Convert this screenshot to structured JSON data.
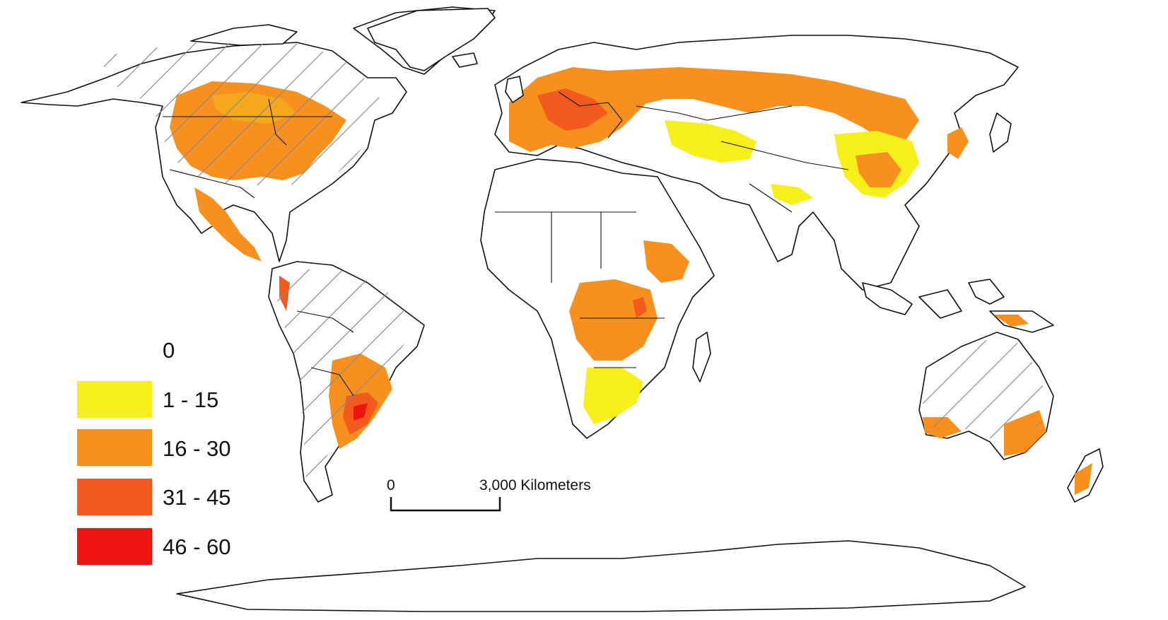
{
  "legend": {
    "items": [
      {
        "label": "0",
        "color": "#ffffff"
      },
      {
        "label": "1 - 15",
        "color": "#f7ef1a"
      },
      {
        "label": "16 - 30",
        "color": "#f7901e"
      },
      {
        "label": "31 - 45",
        "color": "#f25a1e"
      },
      {
        "label": "46 - 60",
        "color": "#ee1411"
      }
    ]
  },
  "scale_bar": {
    "start_label": "0",
    "end_label": "3,000 Kilometers"
  },
  "map": {
    "hatched_regions": [
      "North America",
      "South America",
      "Australia"
    ],
    "colors": {
      "coastline": "#111111",
      "ocean": "#ffffff",
      "hatch": "#8a8a8a"
    }
  }
}
